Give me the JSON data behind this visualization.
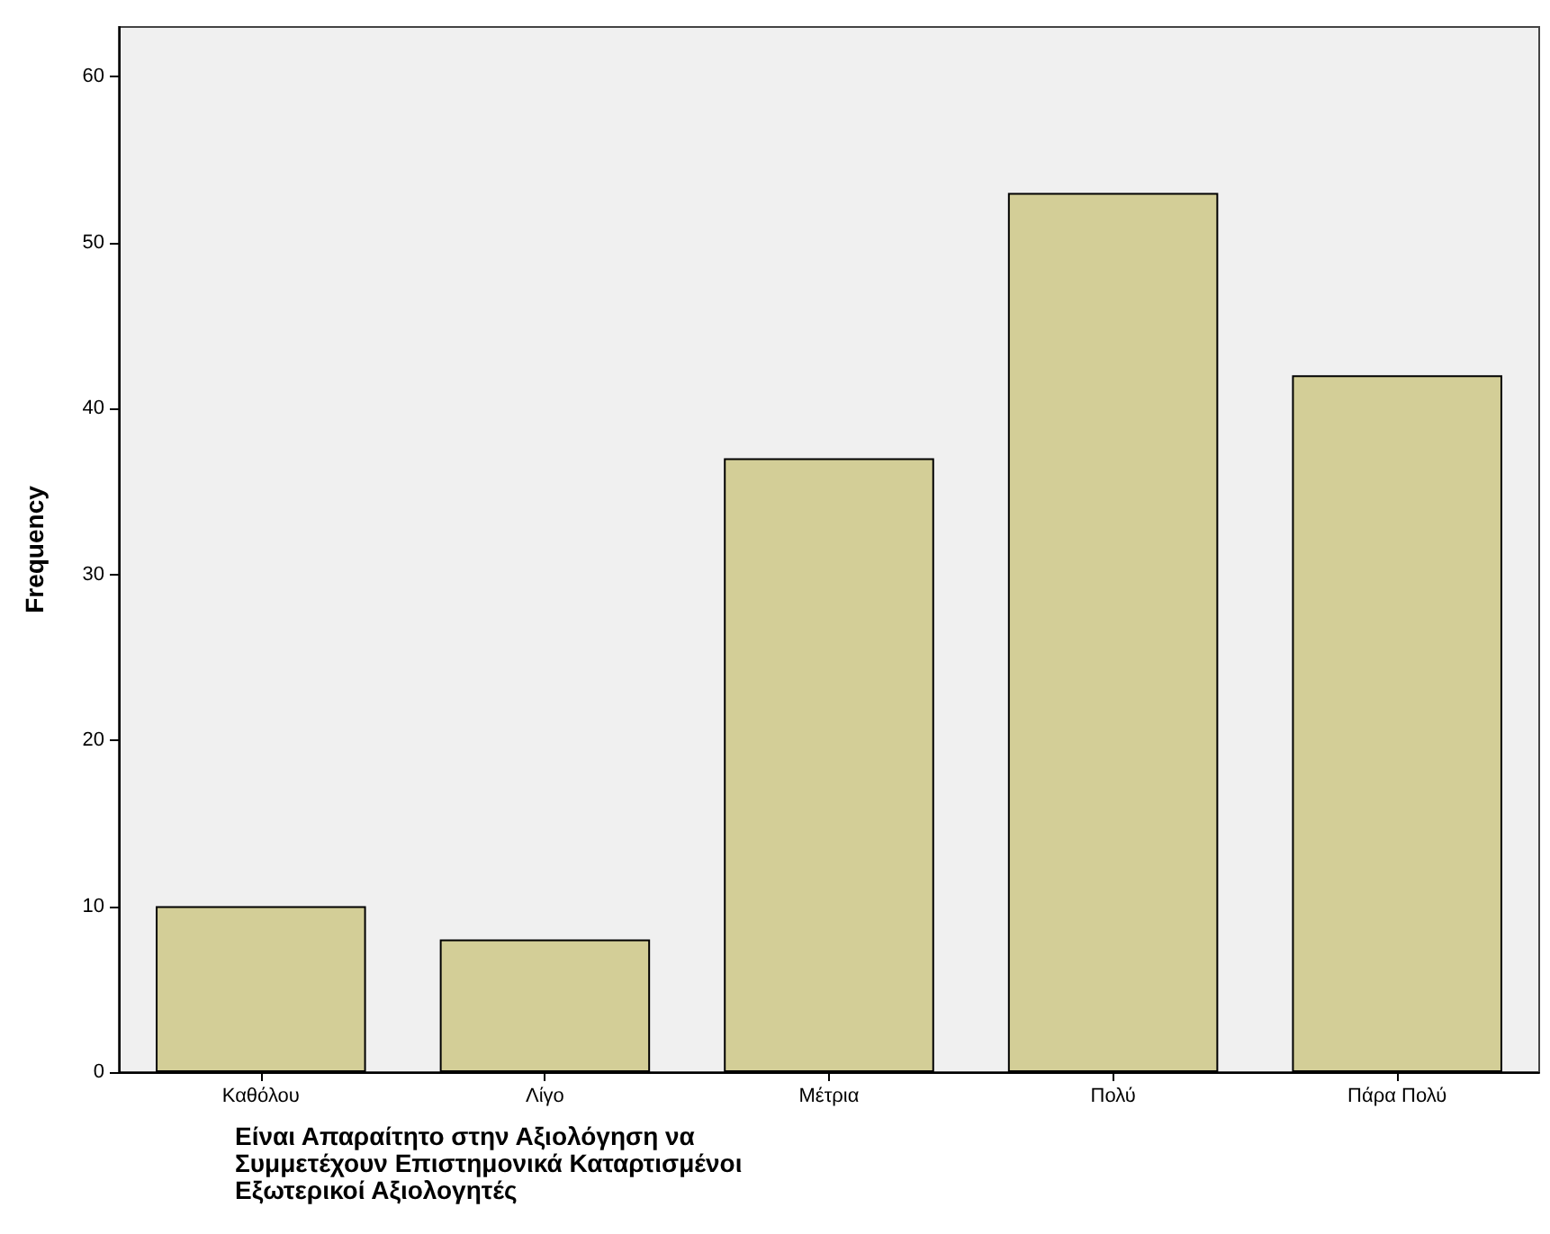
{
  "chart_data": {
    "type": "bar",
    "xlabel": "Είναι Απαραίτητο στην Αξιολόγηση να Συμμετέχουν Επιστημονικά Καταρτισμένοι Εξωτερικοί Αξιολογητές",
    "ylabel": "Frequency",
    "categories": [
      "Καθόλου",
      "Λίγο",
      "Μέτρια",
      "Πολύ",
      "Πάρα Πολύ"
    ],
    "values": [
      10,
      8,
      37,
      53,
      42
    ],
    "color": "#d3ce97",
    "ylim": [
      0,
      63
    ],
    "yticks": [
      0,
      10,
      20,
      30,
      40,
      50,
      60
    ],
    "grid": false
  }
}
